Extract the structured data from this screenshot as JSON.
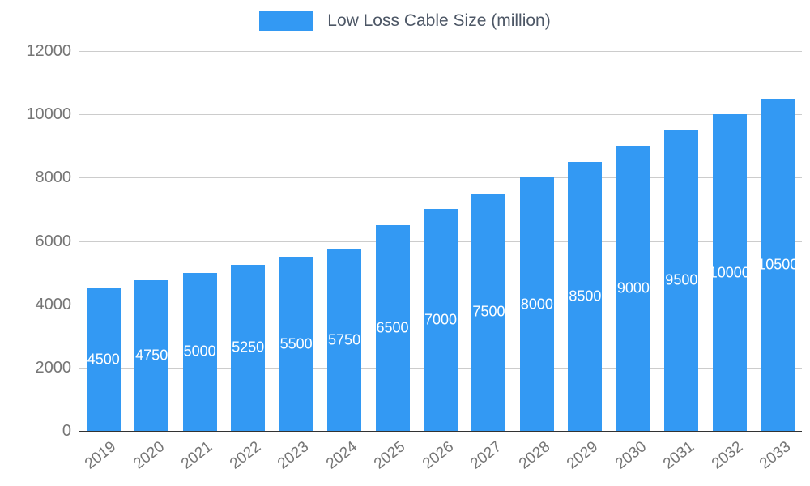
{
  "legend": {
    "label": "Low Loss Cable Size (million)"
  },
  "chart_data": {
    "type": "bar",
    "title": "Low Loss Cable Size (million)",
    "categories": [
      "2019",
      "2020",
      "2021",
      "2022",
      "2023",
      "2024",
      "2025",
      "2026",
      "2027",
      "2028",
      "2029",
      "2030",
      "2031",
      "2032",
      "2033"
    ],
    "values": [
      4500,
      4750,
      5000,
      5250,
      5500,
      5750,
      6500,
      7000,
      7500,
      8000,
      8500,
      9000,
      9500,
      10000,
      10500
    ],
    "xlabel": "",
    "ylabel": "",
    "ylim": [
      0,
      12000
    ],
    "yticks": [
      0,
      2000,
      4000,
      6000,
      8000,
      10000,
      12000
    ],
    "grid": true,
    "legend_position": "top",
    "bar_color": "#3399f3",
    "value_label_color": "#ffffff",
    "axis_text_color": "#757575",
    "grid_color": "#cccccc",
    "baseline_color": "#333333"
  }
}
